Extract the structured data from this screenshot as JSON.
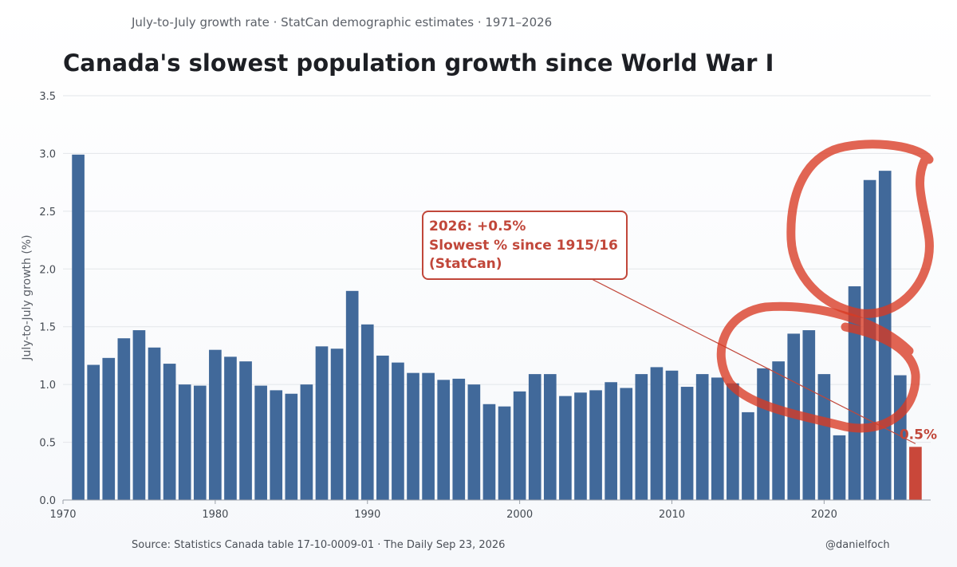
{
  "header": {
    "subtitle": "July-to-July growth rate · StatCan demographic estimates · 1971–2026",
    "title": "Canada's slowest population growth since World War I"
  },
  "footer": {
    "source": "Source: Statistics Canada table 17-10-0009-01 · The Daily Sep 23, 2026",
    "credit": "@danielfoch"
  },
  "colors": {
    "bar": "#41699a",
    "highlight": "#c9473a",
    "annotation": "#c1473a",
    "scribble": "#d93a22",
    "grid": "#e3e6ea"
  },
  "chart_data": {
    "type": "bar",
    "x": [
      1971,
      1972,
      1973,
      1974,
      1975,
      1976,
      1977,
      1978,
      1979,
      1980,
      1981,
      1982,
      1983,
      1984,
      1985,
      1986,
      1987,
      1988,
      1989,
      1990,
      1991,
      1992,
      1993,
      1994,
      1995,
      1996,
      1997,
      1998,
      1999,
      2000,
      2001,
      2002,
      2003,
      2004,
      2005,
      2006,
      2007,
      2008,
      2009,
      2010,
      2011,
      2012,
      2013,
      2014,
      2015,
      2016,
      2017,
      2018,
      2019,
      2020,
      2021,
      2022,
      2023,
      2024,
      2025,
      2026
    ],
    "values": [
      2.99,
      1.17,
      1.23,
      1.4,
      1.47,
      1.32,
      1.18,
      1.0,
      0.99,
      1.3,
      1.24,
      1.2,
      0.99,
      0.95,
      0.92,
      1.0,
      1.33,
      1.31,
      1.81,
      1.52,
      1.25,
      1.19,
      1.1,
      1.1,
      1.04,
      1.05,
      1.0,
      0.83,
      0.81,
      0.94,
      1.09,
      1.09,
      0.9,
      0.93,
      0.95,
      1.02,
      0.97,
      1.09,
      1.15,
      1.12,
      0.98,
      1.09,
      1.06,
      1.01,
      0.76,
      1.14,
      1.2,
      1.44,
      1.47,
      1.09,
      0.56,
      1.85,
      2.77,
      2.85,
      1.08,
      0.46
    ],
    "highlight_index": 55,
    "ylabel": "July-to-July growth (%)",
    "ylim": [
      0,
      3.5
    ],
    "yticks": [
      0.0,
      0.5,
      1.0,
      1.5,
      2.0,
      2.5,
      3.0,
      3.5
    ],
    "xlim": [
      1970,
      2027
    ],
    "xticks": [
      1970,
      1980,
      1990,
      2000,
      2010,
      2020
    ],
    "grid": true,
    "annotation": {
      "lines": [
        "2026: +0.5%",
        "Slowest % since 1915/16",
        "(StatCan)"
      ]
    },
    "last_bar_label": "0.5%"
  }
}
